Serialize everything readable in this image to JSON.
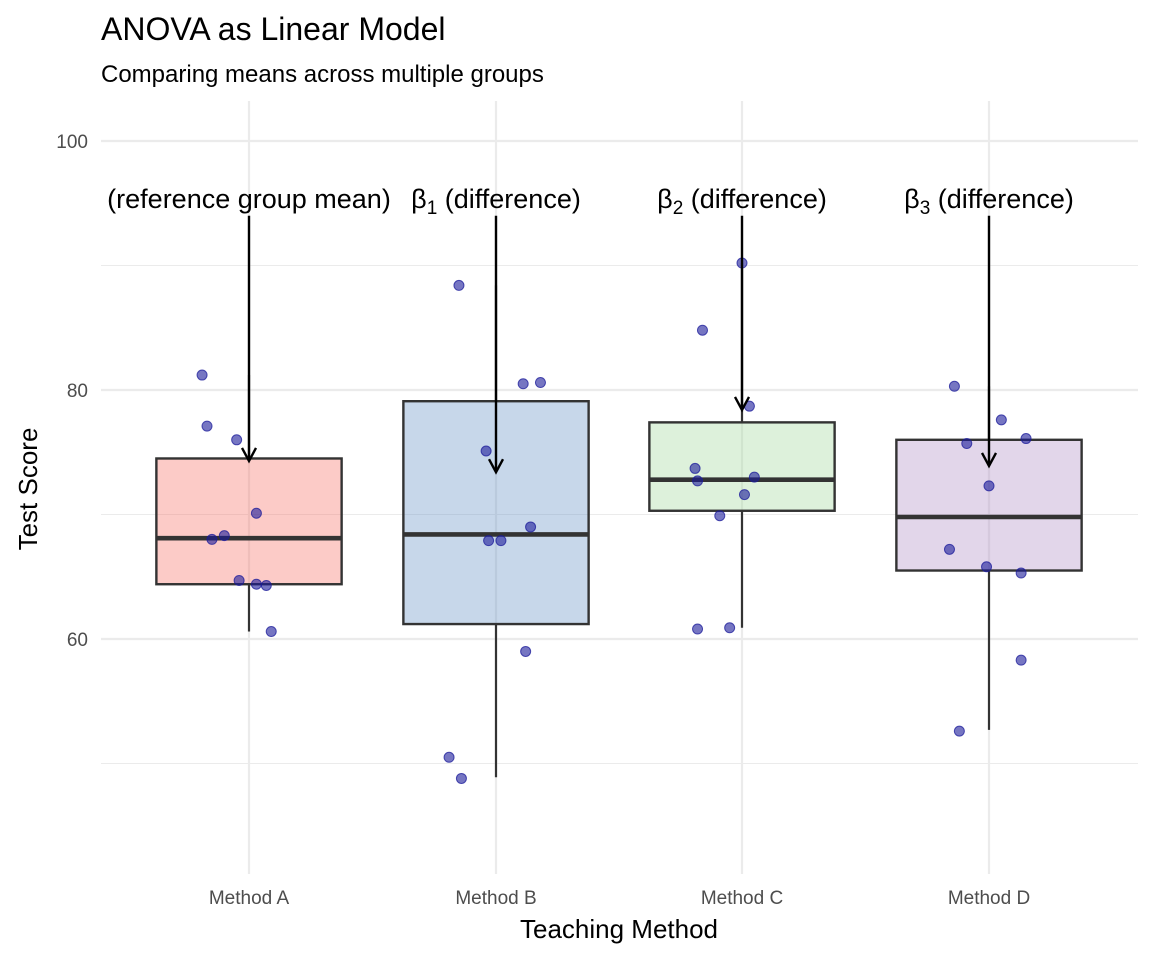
{
  "chart_data": {
    "type": "box",
    "title": "ANOVA as Linear Model",
    "subtitle": "Comparing means across multiple groups",
    "xlabel": "Teaching Method",
    "ylabel": "Test Score",
    "ylim": [
      41.5,
      103
    ],
    "yticks": [
      60,
      80,
      100
    ],
    "grid": true,
    "legend": "none",
    "categories": [
      "Method A",
      "Method B",
      "Method C",
      "Method D"
    ],
    "colors": {
      "fills": [
        "#f8766d",
        "#6b97c7",
        "#a6dba0",
        "#b294c7"
      ],
      "box_outline": "#333333",
      "points": "#1a1a99",
      "grid": "#ebebeb"
    },
    "boxes": [
      {
        "category": "Method A",
        "whisker_low": 60.6,
        "q1": 64.4,
        "median": 68.1,
        "q3": 74.5,
        "whisker_high": 81.2
      },
      {
        "category": "Method B",
        "whisker_low": 48.9,
        "q1": 61.2,
        "median": 68.4,
        "q3": 79.1,
        "whisker_high": 88.4
      },
      {
        "category": "Method C",
        "whisker_low": 60.9,
        "q1": 70.3,
        "median": 72.8,
        "q3": 77.4,
        "whisker_high": 90.2
      },
      {
        "category": "Method D",
        "whisker_low": 52.7,
        "q1": 65.5,
        "median": 69.8,
        "q3": 76.0,
        "whisker_high": 80.3
      }
    ],
    "points": [
      {
        "category": "Method A",
        "values": [
          81.2,
          77.1,
          76.0,
          70.1,
          68.3,
          68.0,
          64.7,
          64.4,
          64.3,
          60.6
        ],
        "offsets": [
          -0.19,
          -0.17,
          -0.05,
          0.03,
          -0.1,
          -0.15,
          -0.04,
          0.03,
          0.07,
          0.09
        ]
      },
      {
        "category": "Method B",
        "values": [
          88.4,
          80.5,
          80.6,
          75.1,
          69.0,
          67.9,
          67.9,
          59.0,
          50.5,
          48.8
        ],
        "offsets": [
          -0.15,
          0.11,
          0.18,
          -0.04,
          0.14,
          -0.03,
          0.02,
          0.12,
          -0.19,
          -0.14
        ]
      },
      {
        "category": "Method C",
        "values": [
          90.2,
          84.8,
          78.7,
          73.7,
          72.7,
          73.0,
          71.6,
          69.9,
          60.8,
          60.9
        ],
        "offsets": [
          0.0,
          -0.16,
          0.03,
          -0.19,
          -0.18,
          0.05,
          0.01,
          -0.09,
          -0.18,
          -0.05
        ]
      },
      {
        "category": "Method D",
        "values": [
          80.3,
          77.6,
          75.7,
          76.1,
          72.3,
          67.2,
          65.8,
          65.3,
          58.3,
          52.6
        ],
        "offsets": [
          -0.14,
          0.05,
          -0.09,
          0.15,
          0.0,
          -0.16,
          -0.01,
          0.13,
          0.13,
          -0.12
        ]
      }
    ],
    "annotations": [
      {
        "category": "Method A",
        "label": "(reference group mean)",
        "arrow_from": 94,
        "arrow_to": 74.3
      },
      {
        "category": "Method B",
        "label": "β",
        "subscript": "1",
        "suffix": " (difference)",
        "arrow_from": 94,
        "arrow_to": 73.4
      },
      {
        "category": "Method C",
        "label": "β",
        "subscript": "2",
        "suffix": " (difference)",
        "arrow_from": 94,
        "arrow_to": 78.4
      },
      {
        "category": "Method D",
        "label": "β",
        "subscript": "3",
        "suffix": " (difference)",
        "arrow_from": 94,
        "arrow_to": 73.9
      }
    ]
  }
}
